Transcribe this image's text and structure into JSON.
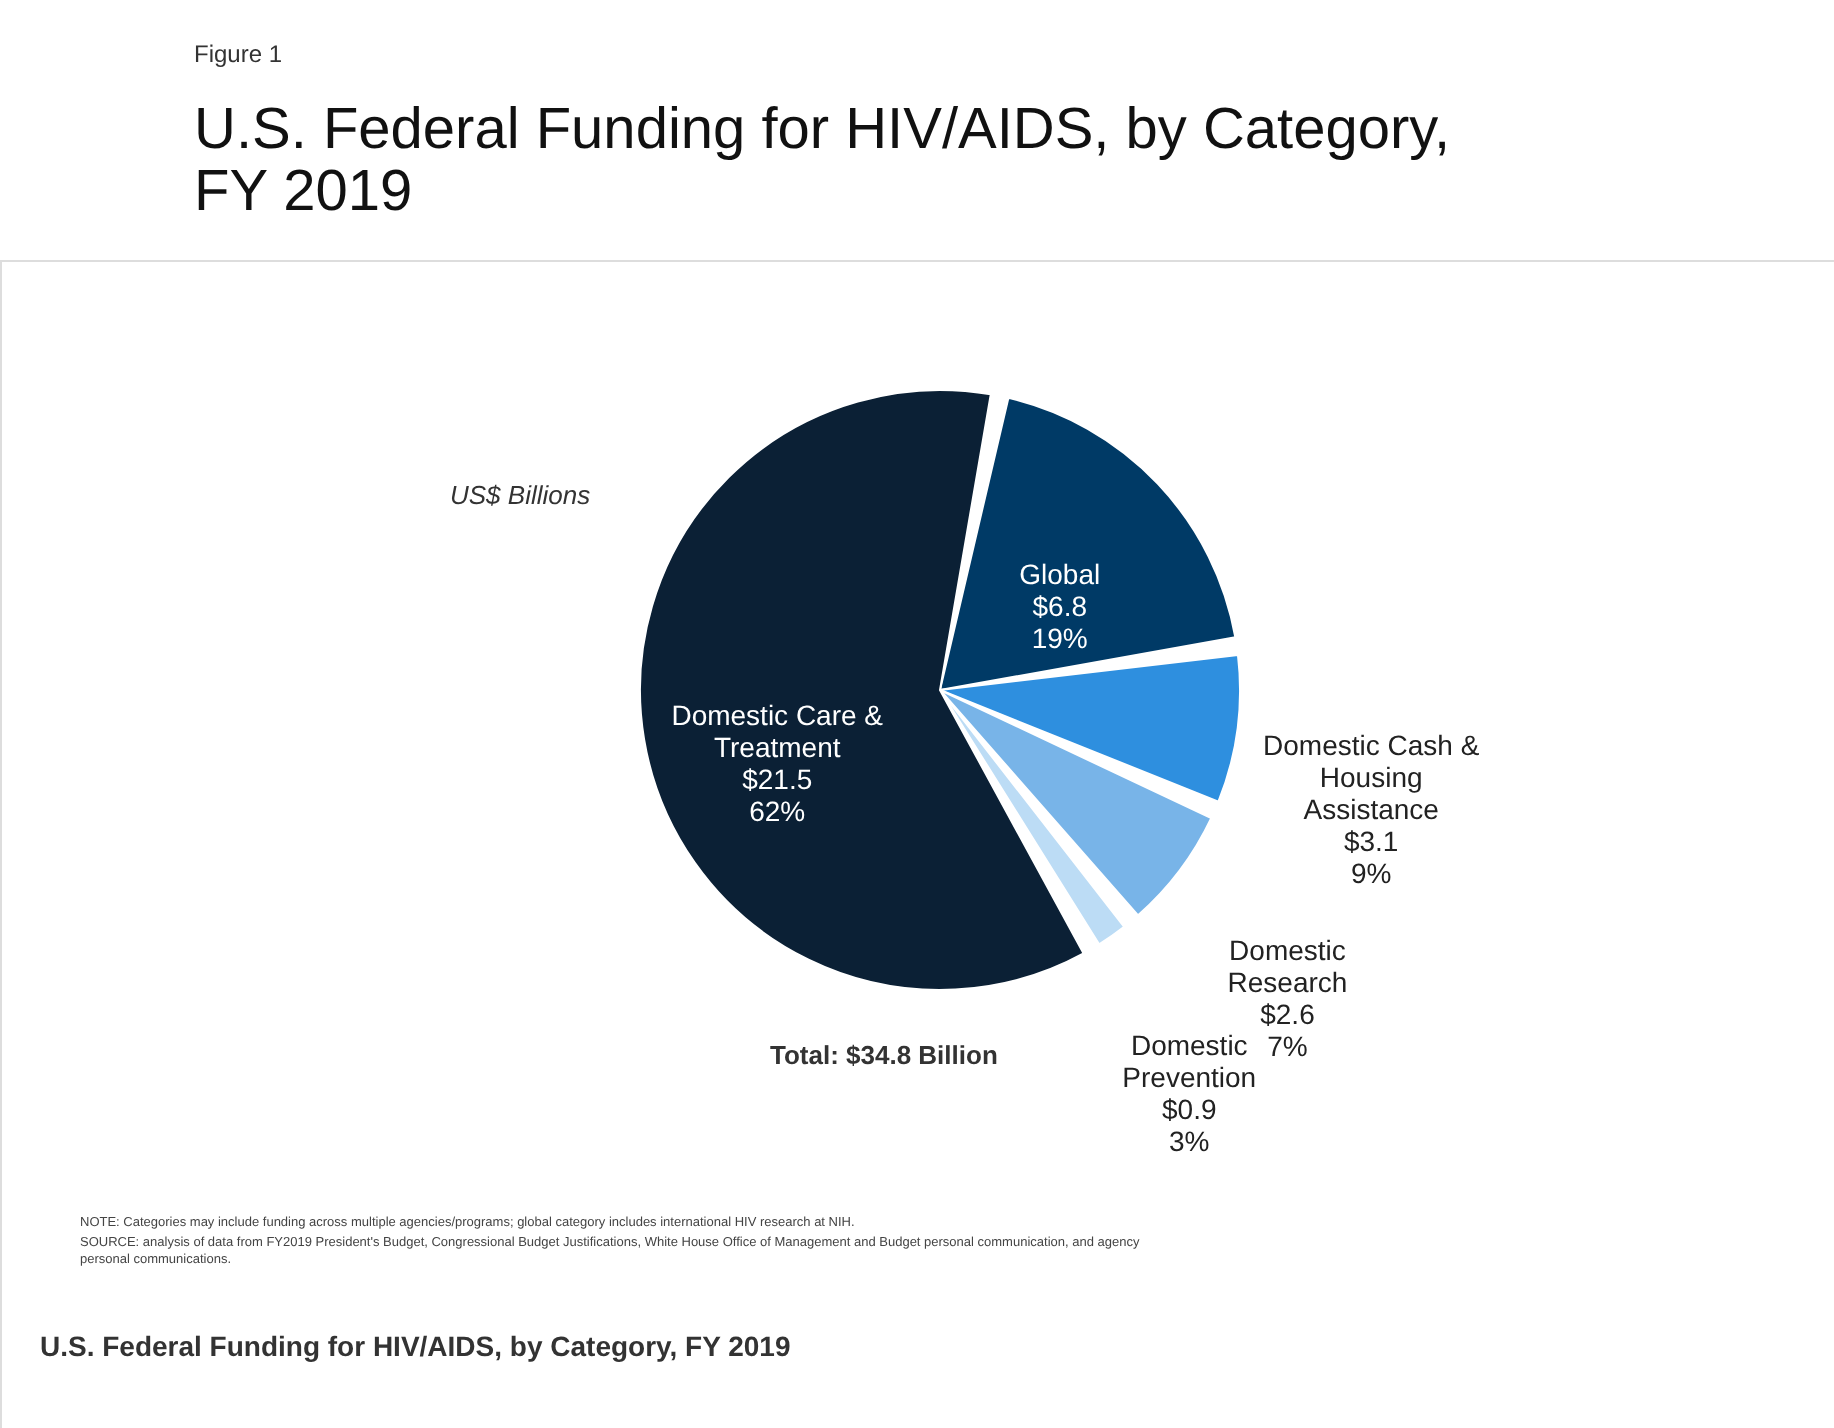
{
  "chart_data": {
    "type": "pie",
    "title": "U.S. Federal Funding for HIV/AIDS, by Category, FY 2019",
    "categories": [
      "Global",
      "Domestic Cash & Housing Assistance",
      "Domestic Research",
      "Domestic Prevention",
      "Domestic Care & Treatment"
    ],
    "values": [
      6.8,
      3.1,
      2.6,
      0.9,
      21.5
    ],
    "value_labels": [
      "$6.8\n19%",
      "$3.1\n9%",
      "$2.6\n7%",
      "$0.9\n3%",
      "$21.5\n62%"
    ],
    "colors": [
      "#003a66",
      "#2e8fdf",
      "#78b4e8",
      "#bcdcf5",
      "#0b2035"
    ],
    "annotations": [
      "Figure 1",
      "US$ Billions",
      "Total: $34.8 Billion",
      "NOTE: Categories may include funding across multiple agencies/programs; global category includes international HIV research at NIH.",
      "SOURCE: analysis of data from FY2019 President's Budget, Congressional Budget Justifications, White House Office of Management and Budget personal communication, and agency personal communications.",
      "U.S. Federal Funding for HIV/AIDS, by Category, FY 2019"
    ]
  }
}
